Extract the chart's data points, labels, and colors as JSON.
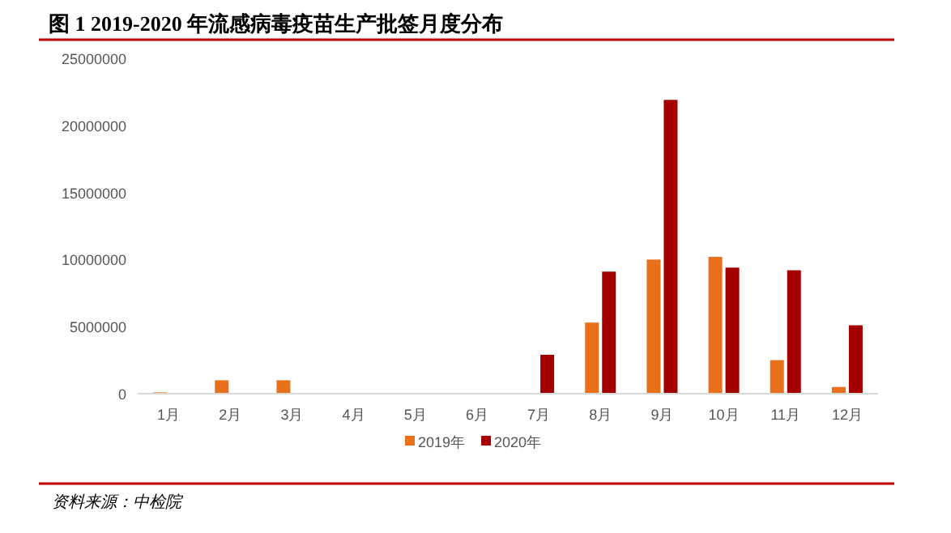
{
  "chart_data": {
    "type": "bar",
    "title": "图 1 2019-2020 年流感病毒疫苗生产批签月度分布",
    "categories": [
      "1月",
      "2月",
      "3月",
      "4月",
      "5月",
      "6月",
      "7月",
      "8月",
      "9月",
      "10月",
      "11月",
      "12月"
    ],
    "series": [
      {
        "name": "2019年",
        "color": "#e8701a",
        "values": [
          100000,
          1000000,
          1000000,
          0,
          0,
          0,
          0,
          5300000,
          10000000,
          10200000,
          2500000,
          500000
        ]
      },
      {
        "name": "2020年",
        "color": "#a50000",
        "values": [
          0,
          0,
          0,
          0,
          0,
          0,
          2900000,
          9100000,
          21900000,
          9400000,
          9200000,
          5100000
        ]
      }
    ],
    "ylim": [
      0,
      25000000
    ],
    "yticks": [
      0,
      5000000,
      10000000,
      15000000,
      20000000,
      25000000
    ],
    "grid": false,
    "legend": "bottom",
    "annotations": [
      "资料来源：中检院"
    ]
  }
}
